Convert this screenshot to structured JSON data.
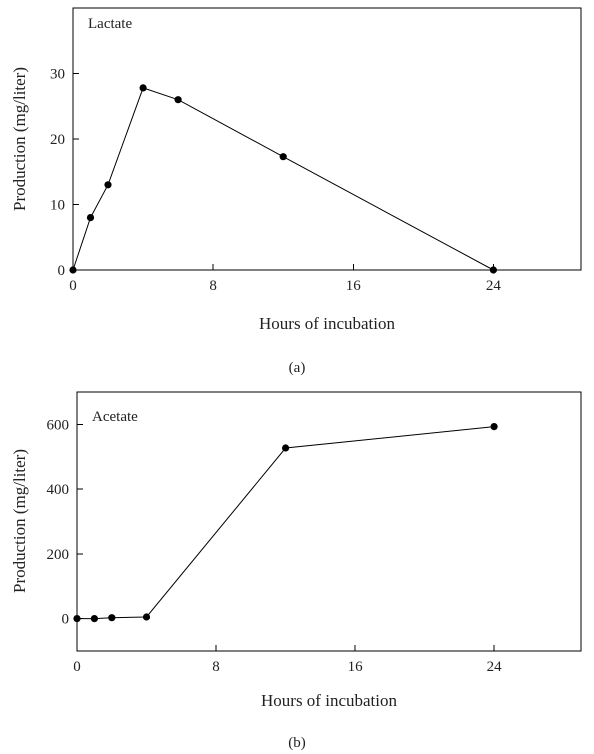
{
  "chart_data": [
    {
      "type": "line",
      "panel_label": "(a)",
      "annotation": "Lactate",
      "xlabel": "Hours of incubation",
      "ylabel": "Production (mg/liter)",
      "xlim": [
        0,
        29
      ],
      "ylim": [
        0,
        40
      ],
      "xticks": [
        0,
        8,
        16,
        24
      ],
      "yticks": [
        0,
        10,
        20,
        30
      ],
      "x": [
        0,
        1,
        2,
        4,
        6,
        12,
        24
      ],
      "y": [
        0,
        8,
        13,
        27.8,
        26,
        17.3,
        0
      ]
    },
    {
      "type": "line",
      "panel_label": "(b)",
      "annotation": "Acetate",
      "xlabel": "Hours of incubation",
      "ylabel": "Production (mg/liter)",
      "xlim": [
        0,
        29
      ],
      "ylim": [
        -100,
        700
      ],
      "xticks": [
        0,
        8,
        16,
        24
      ],
      "yticks": [
        0,
        200,
        400,
        600
      ],
      "x": [
        0,
        1,
        2,
        4,
        12,
        24
      ],
      "y": [
        0,
        0,
        3,
        5,
        527,
        593
      ]
    }
  ]
}
